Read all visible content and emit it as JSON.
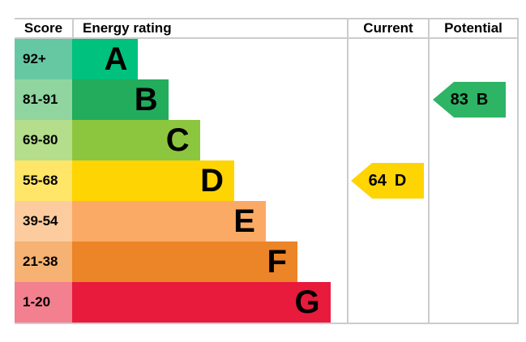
{
  "header": {
    "score": "Score",
    "energy_rating": "Energy rating",
    "current": "Current",
    "potential": "Potential"
  },
  "chart_data": {
    "type": "bar",
    "description": "EPC energy efficiency rating chart",
    "categories": [
      "A",
      "B",
      "C",
      "D",
      "E",
      "F",
      "G"
    ],
    "bands": [
      {
        "score": "92+",
        "letter": "A",
        "bar_color": "#00c17e",
        "tint_color": "#66c8a3",
        "width_pct": 24
      },
      {
        "score": "81-91",
        "letter": "B",
        "bar_color": "#22ac5c",
        "tint_color": "#90d5a0",
        "width_pct": 35
      },
      {
        "score": "69-80",
        "letter": "C",
        "bar_color": "#8cc63f",
        "tint_color": "#b4dd8c",
        "width_pct": 46.5
      },
      {
        "score": "55-68",
        "letter": "D",
        "bar_color": "#fed402",
        "tint_color": "#ffe668",
        "width_pct": 59
      },
      {
        "score": "39-54",
        "letter": "E",
        "bar_color": "#fbaa65",
        "tint_color": "#fdcc9e",
        "width_pct": 70.5
      },
      {
        "score": "21-38",
        "letter": "F",
        "bar_color": "#ec8428",
        "tint_color": "#f5b272",
        "width_pct": 82
      },
      {
        "score": "1-20",
        "letter": "G",
        "bar_color": "#e81b3c",
        "tint_color": "#f3808f",
        "width_pct": 94
      }
    ],
    "current": {
      "value": "64",
      "band": "D",
      "color": "#fed402"
    },
    "potential": {
      "value": "83",
      "band": "B",
      "color": "#2eb465"
    },
    "grid_color": "#cccccc"
  }
}
